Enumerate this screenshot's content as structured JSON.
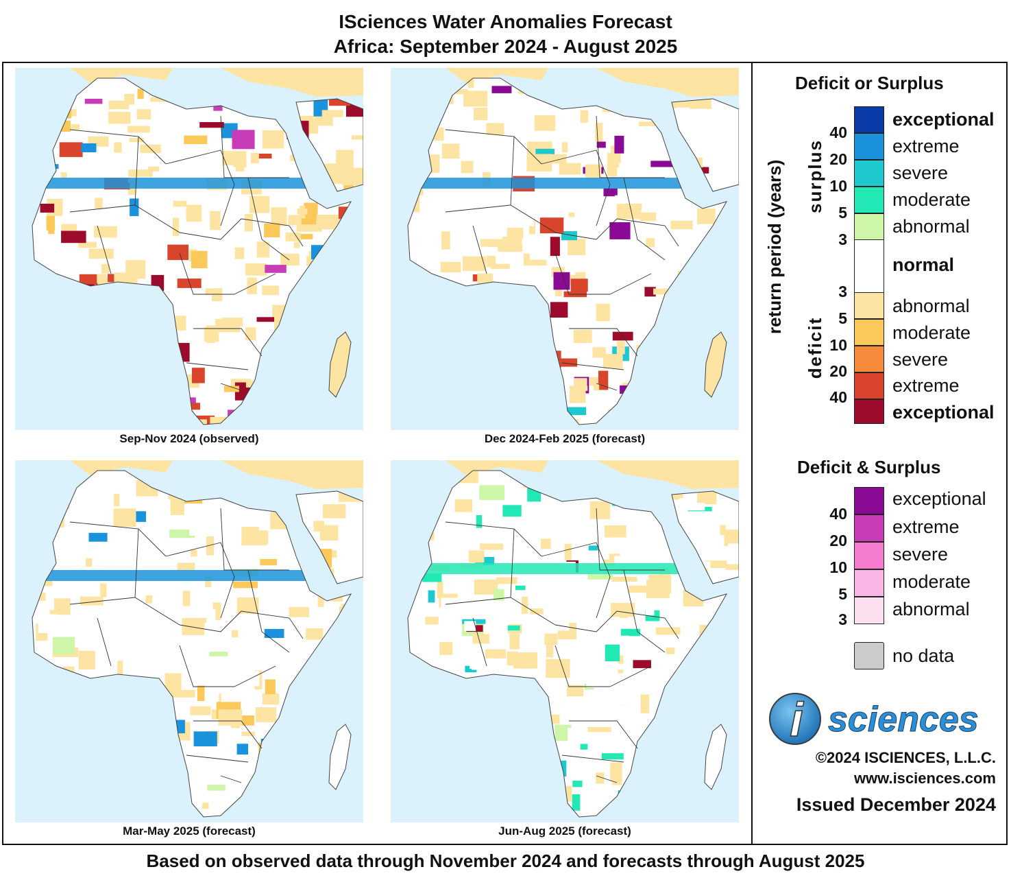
{
  "header": {
    "title": "ISciences Water Anomalies Forecast",
    "subtitle": "Africa: September 2024 - August 2025"
  },
  "panels": [
    {
      "caption": "Sep-Nov 2024 (observed)"
    },
    {
      "caption": "Dec 2024-Feb 2025 (forecast)"
    },
    {
      "caption": "Mar-May 2025 (forecast)"
    },
    {
      "caption": "Jun-Aug 2025 (forecast)"
    }
  ],
  "legend": {
    "ds_title": "Deficit or Surplus",
    "axis_label": "return period (years)",
    "surplus_label": "surplus",
    "deficit_label": "deficit",
    "surplus": [
      {
        "label": "exceptional",
        "color": "#0a3aa8"
      },
      {
        "label": "extreme",
        "color": "#1b93dc"
      },
      {
        "label": "severe",
        "color": "#1ec8cf"
      },
      {
        "label": "moderate",
        "color": "#22e8b6"
      },
      {
        "label": "abnormal",
        "color": "#cdf6a8"
      }
    ],
    "surplus_numbers": [
      "40",
      "20",
      "10",
      "5",
      "3"
    ],
    "normal": {
      "label": "normal",
      "color": "#ffffff"
    },
    "deficit": [
      {
        "label": "abnormal",
        "color": "#fde4a2"
      },
      {
        "label": "moderate",
        "color": "#fbc95a"
      },
      {
        "label": "severe",
        "color": "#f58a3a"
      },
      {
        "label": "extreme",
        "color": "#d9442c"
      },
      {
        "label": "exceptional",
        "color": "#9c0a2c"
      }
    ],
    "deficit_numbers": [
      "3",
      "5",
      "10",
      "20",
      "40"
    ],
    "both_title": "Deficit & Surplus",
    "both": [
      {
        "label": "exceptional",
        "color": "#8a0a96"
      },
      {
        "label": "extreme",
        "color": "#c93cb8"
      },
      {
        "label": "severe",
        "color": "#f57ccf"
      },
      {
        "label": "moderate",
        "color": "#fab7e6"
      },
      {
        "label": "abnormal",
        "color": "#fde0ef"
      }
    ],
    "both_numbers": [
      "40",
      "20",
      "10",
      "5",
      "3"
    ],
    "nodata": {
      "label": "no data",
      "color": "#cccccc"
    }
  },
  "brand": {
    "logo_letter": "i",
    "logo_text": "sciences",
    "copyright": "©2024 ISCIENCES, L.L.C.",
    "website": "www.isciences.com",
    "issued": "Issued December 2024"
  },
  "footer": "Based on observed data through November 2024 and forecasts through August 2025"
}
